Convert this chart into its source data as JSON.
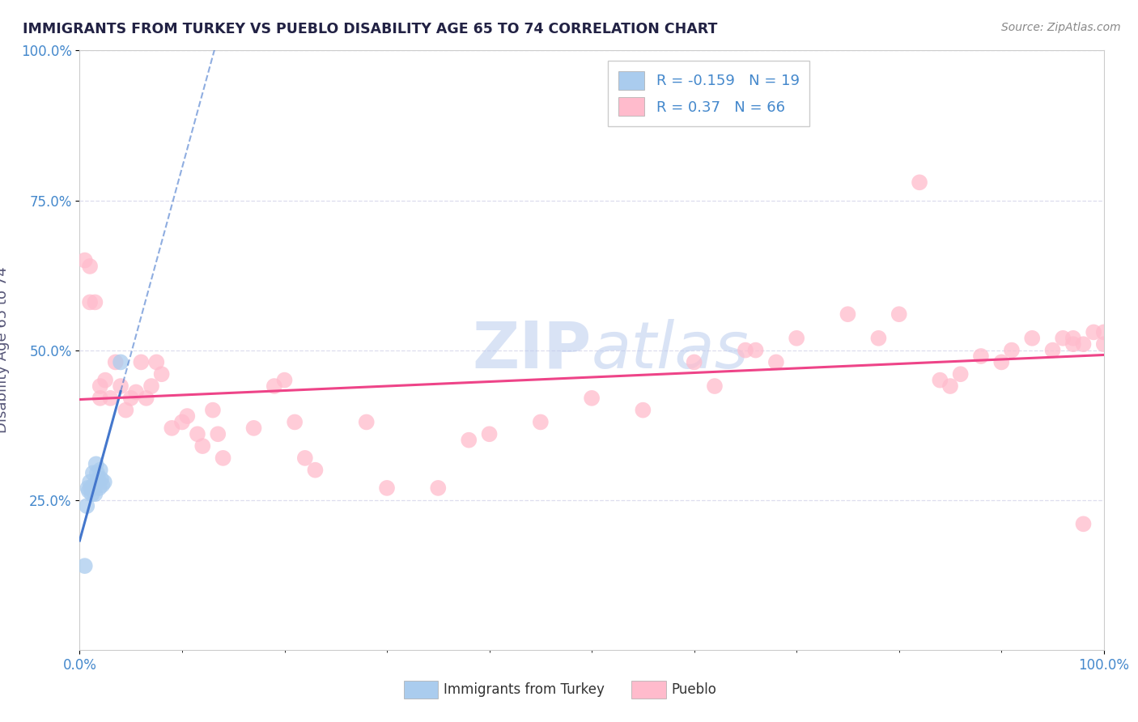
{
  "title": "IMMIGRANTS FROM TURKEY VS PUEBLO DISABILITY AGE 65 TO 74 CORRELATION CHART",
  "source": "Source: ZipAtlas.com",
  "ylabel": "Disability Age 65 to 74",
  "legend_label1": "Immigrants from Turkey",
  "legend_label2": "Pueblo",
  "r1": -0.159,
  "n1": 19,
  "r2": 0.37,
  "n2": 66,
  "color1": "#aaccee",
  "color2": "#ffbbcc",
  "line_color1": "#4477cc",
  "line_color2": "#ee4488",
  "watermark_color": "#bbccee",
  "title_color": "#222244",
  "axis_label_color": "#555577",
  "tick_label_color": "#4488cc",
  "grid_color": "#ddddee",
  "background_color": "#ffffff",
  "xlim": [
    0.0,
    1.0
  ],
  "ylim": [
    0.0,
    1.0
  ],
  "turkey_x": [
    0.005,
    0.007,
    0.008,
    0.009,
    0.01,
    0.011,
    0.012,
    0.013,
    0.014,
    0.015,
    0.016,
    0.017,
    0.018,
    0.019,
    0.02,
    0.021,
    0.022,
    0.024,
    0.04
  ],
  "turkey_y": [
    0.14,
    0.24,
    0.27,
    0.265,
    0.28,
    0.27,
    0.26,
    0.295,
    0.275,
    0.26,
    0.31,
    0.295,
    0.285,
    0.27,
    0.3,
    0.285,
    0.275,
    0.28,
    0.48
  ],
  "pueblo_x": [
    0.005,
    0.01,
    0.01,
    0.015,
    0.02,
    0.02,
    0.025,
    0.03,
    0.035,
    0.04,
    0.045,
    0.05,
    0.055,
    0.06,
    0.065,
    0.07,
    0.075,
    0.08,
    0.09,
    0.1,
    0.105,
    0.115,
    0.12,
    0.13,
    0.135,
    0.14,
    0.17,
    0.19,
    0.2,
    0.21,
    0.22,
    0.23,
    0.28,
    0.3,
    0.35,
    0.38,
    0.4,
    0.45,
    0.5,
    0.55,
    0.6,
    0.62,
    0.65,
    0.66,
    0.68,
    0.7,
    0.75,
    0.78,
    0.8,
    0.82,
    0.84,
    0.85,
    0.86,
    0.88,
    0.9,
    0.91,
    0.93,
    0.95,
    0.96,
    0.97,
    0.98,
    0.99,
    1.0,
    1.0,
    0.98,
    0.97
  ],
  "pueblo_y": [
    0.65,
    0.64,
    0.58,
    0.58,
    0.44,
    0.42,
    0.45,
    0.42,
    0.48,
    0.44,
    0.4,
    0.42,
    0.43,
    0.48,
    0.42,
    0.44,
    0.48,
    0.46,
    0.37,
    0.38,
    0.39,
    0.36,
    0.34,
    0.4,
    0.36,
    0.32,
    0.37,
    0.44,
    0.45,
    0.38,
    0.32,
    0.3,
    0.38,
    0.27,
    0.27,
    0.35,
    0.36,
    0.38,
    0.42,
    0.4,
    0.48,
    0.44,
    0.5,
    0.5,
    0.48,
    0.52,
    0.56,
    0.52,
    0.56,
    0.78,
    0.45,
    0.44,
    0.46,
    0.49,
    0.48,
    0.5,
    0.52,
    0.5,
    0.52,
    0.52,
    0.51,
    0.53,
    0.51,
    0.53,
    0.21,
    0.51
  ]
}
